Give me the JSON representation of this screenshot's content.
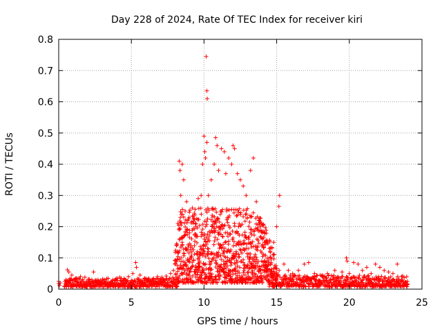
{
  "chart_data": {
    "type": "scatter",
    "title": "Day 228 of 2024, Rate Of TEC Index for receiver kiri",
    "xlabel": "GPS time / hours",
    "ylabel": "ROTI / TECUs",
    "xlim": [
      0,
      25
    ],
    "ylim": [
      0,
      0.8
    ],
    "xticks": [
      0,
      5,
      10,
      15,
      20,
      25
    ],
    "yticks": [
      0,
      0.1,
      0.2,
      0.3,
      0.4,
      0.5,
      0.6,
      0.7,
      0.8
    ],
    "xtick_labels": [
      "0",
      "5",
      "10",
      "15",
      "20",
      "25"
    ],
    "ytick_labels": [
      "0",
      "0.1",
      "0.2",
      "0.3",
      "0.4",
      "0.5",
      "0.6",
      "0.7",
      "0.8"
    ],
    "grid": true,
    "marker": "+",
    "color": "#ff0000",
    "series": [
      {
        "name": "ROTI",
        "points": [
          [
            0.0,
            0.018
          ],
          [
            0.0,
            0.025
          ],
          [
            0.05,
            0.012
          ],
          [
            0.1,
            0.02
          ],
          [
            0.5,
            0.03
          ],
          [
            0.6,
            0.062
          ],
          [
            0.7,
            0.055
          ],
          [
            0.9,
            0.045
          ],
          [
            1.2,
            0.035
          ],
          [
            1.5,
            0.04
          ],
          [
            1.8,
            0.038
          ],
          [
            2.1,
            0.032
          ],
          [
            2.4,
            0.055
          ],
          [
            2.7,
            0.03
          ],
          [
            3.0,
            0.028
          ],
          [
            3.3,
            0.033
          ],
          [
            3.6,
            0.025
          ],
          [
            3.9,
            0.03
          ],
          [
            4.2,
            0.038
          ],
          [
            4.5,
            0.034
          ],
          [
            4.8,
            0.04
          ],
          [
            5.1,
            0.05
          ],
          [
            5.3,
            0.085
          ],
          [
            5.35,
            0.07
          ],
          [
            5.6,
            0.045
          ],
          [
            5.9,
            0.035
          ],
          [
            6.2,
            0.03
          ],
          [
            6.5,
            0.032
          ],
          [
            6.8,
            0.04
          ],
          [
            7.1,
            0.038
          ],
          [
            7.4,
            0.042
          ],
          [
            7.7,
            0.05
          ],
          [
            7.9,
            0.06
          ],
          [
            8.0,
            0.08
          ],
          [
            8.1,
            0.14
          ],
          [
            8.2,
            0.21
          ],
          [
            8.3,
            0.41
          ],
          [
            8.35,
            0.38
          ],
          [
            8.4,
            0.3
          ],
          [
            8.5,
            0.4
          ],
          [
            8.6,
            0.35
          ],
          [
            8.7,
            0.25
          ],
          [
            8.8,
            0.28
          ],
          [
            8.9,
            0.22
          ],
          [
            9.0,
            0.18
          ],
          [
            9.2,
            0.26
          ],
          [
            9.4,
            0.21
          ],
          [
            9.6,
            0.29
          ],
          [
            9.8,
            0.3
          ],
          [
            9.9,
            0.4
          ],
          [
            10.0,
            0.49
          ],
          [
            10.05,
            0.44
          ],
          [
            10.1,
            0.42
          ],
          [
            10.2,
            0.47
          ],
          [
            10.15,
            0.745
          ],
          [
            10.2,
            0.635
          ],
          [
            10.22,
            0.61
          ],
          [
            10.3,
            0.3
          ],
          [
            10.5,
            0.35
          ],
          [
            10.7,
            0.4
          ],
          [
            10.8,
            0.485
          ],
          [
            10.9,
            0.46
          ],
          [
            11.0,
            0.38
          ],
          [
            11.2,
            0.45
          ],
          [
            11.4,
            0.44
          ],
          [
            11.5,
            0.37
          ],
          [
            11.7,
            0.42
          ],
          [
            11.9,
            0.4
          ],
          [
            12.0,
            0.46
          ],
          [
            12.1,
            0.45
          ],
          [
            12.3,
            0.37
          ],
          [
            12.5,
            0.35
          ],
          [
            12.7,
            0.33
          ],
          [
            12.9,
            0.3
          ],
          [
            13.2,
            0.38
          ],
          [
            13.4,
            0.42
          ],
          [
            13.6,
            0.28
          ],
          [
            13.8,
            0.22
          ],
          [
            14.0,
            0.18
          ],
          [
            14.2,
            0.15
          ],
          [
            14.5,
            0.13
          ],
          [
            14.8,
            0.15
          ],
          [
            15.0,
            0.2
          ],
          [
            15.2,
            0.3
          ],
          [
            15.15,
            0.265
          ],
          [
            15.5,
            0.08
          ],
          [
            15.8,
            0.06
          ],
          [
            16.1,
            0.05
          ],
          [
            16.5,
            0.06
          ],
          [
            16.9,
            0.08
          ],
          [
            17.2,
            0.085
          ],
          [
            17.6,
            0.05
          ],
          [
            18.0,
            0.045
          ],
          [
            18.5,
            0.05
          ],
          [
            19.0,
            0.06
          ],
          [
            19.5,
            0.055
          ],
          [
            19.8,
            0.1
          ],
          [
            19.85,
            0.09
          ],
          [
            20.0,
            0.05
          ],
          [
            20.3,
            0.085
          ],
          [
            20.6,
            0.08
          ],
          [
            20.9,
            0.06
          ],
          [
            21.2,
            0.07
          ],
          [
            21.5,
            0.05
          ],
          [
            21.8,
            0.08
          ],
          [
            22.1,
            0.07
          ],
          [
            22.4,
            0.06
          ],
          [
            22.7,
            0.055
          ],
          [
            23.0,
            0.05
          ],
          [
            23.3,
            0.08
          ],
          [
            23.6,
            0.04
          ],
          [
            24.0,
            0.025
          ],
          [
            24.0,
            0.015
          ]
        ]
      }
    ]
  }
}
